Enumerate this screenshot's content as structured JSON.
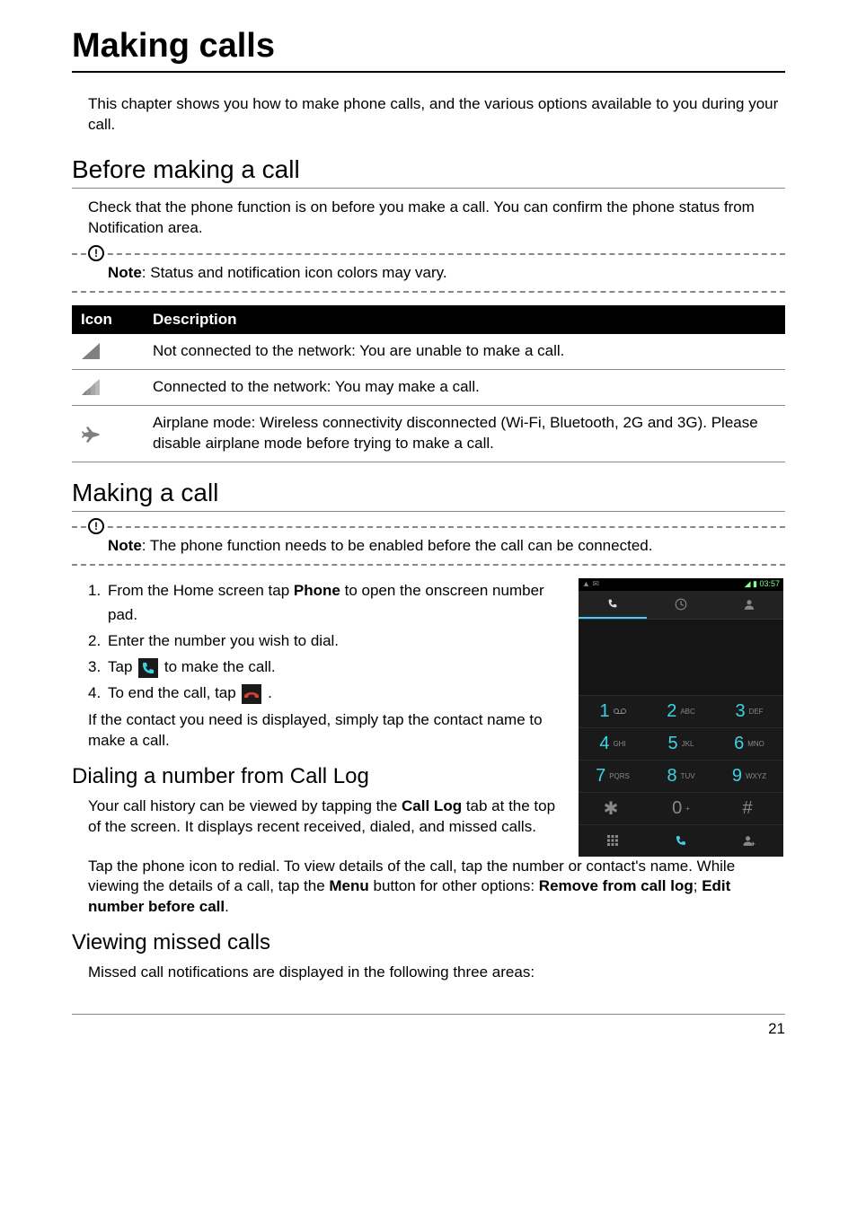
{
  "page_title": "Making calls",
  "intro": "This chapter shows you how to make phone calls, and the various options available to you during your call.",
  "section_before": {
    "heading": "Before making a call",
    "body": "Check that the phone function is on before you make a call. You can confirm the phone status from Notification area.",
    "note_label": "Note",
    "note_text": ": Status and notification icon colors may vary."
  },
  "icon_table": {
    "headers": {
      "icon": "Icon",
      "desc": "Description"
    },
    "rows": [
      {
        "desc": "Not connected to the network: You are unable to make a call."
      },
      {
        "desc": "Connected to the network: You may make a call."
      },
      {
        "desc": "Airplane mode: Wireless connectivity disconnected (Wi-Fi, Bluetooth, 2G and 3G). Please disable airplane mode before trying to make a call."
      }
    ]
  },
  "section_making": {
    "heading": "Making a call",
    "note_label": "Note",
    "note_text": ": The phone function needs to be enabled before the call can be connected.",
    "steps": {
      "s1a": "From the Home screen tap ",
      "s1b": "Phone",
      "s1c": " to open the onscreen number pad.",
      "s2": "Enter the number you wish to dial.",
      "s3a": "Tap ",
      "s3b": " to make the call.",
      "s4a": "To end the call, tap ",
      "s4b": "."
    },
    "tail": "If the contact you need is displayed, simply tap the contact name to make a call."
  },
  "section_dial": {
    "heading": "Dialing a number from Call Log",
    "p1a": "Your call history can be viewed by tapping the ",
    "p1b": "Call Log",
    "p1c": " tab at the top of the screen. It displays recent received, dialed, and missed calls.",
    "p2a": "Tap the phone icon to redial. To view details of the call, tap the number or contact's name. While viewing the details of a call, tap the ",
    "p2b": "Menu",
    "p2c": " button for other options: ",
    "p2d": "Remove from call log",
    "p2e": "; ",
    "p2f": "Edit number before call",
    "p2g": "."
  },
  "section_missed": {
    "heading": "Viewing missed calls",
    "body": "Missed call notifications are displayed in the following three areas:"
  },
  "phone_mock": {
    "status_time": "03:57",
    "keypad": [
      {
        "d": "1",
        "l": ""
      },
      {
        "d": "2",
        "l": "ABC"
      },
      {
        "d": "3",
        "l": "DEF"
      },
      {
        "d": "4",
        "l": "GHI"
      },
      {
        "d": "5",
        "l": "JKL"
      },
      {
        "d": "6",
        "l": "MNO"
      },
      {
        "d": "7",
        "l": "PQRS"
      },
      {
        "d": "8",
        "l": "TUV"
      },
      {
        "d": "9",
        "l": "WXYZ"
      },
      {
        "d": "✱",
        "l": ""
      },
      {
        "d": "0",
        "l": "+"
      },
      {
        "d": "#",
        "l": ""
      }
    ]
  },
  "colors": {
    "text": "#000000",
    "accent_cyan": "#3cd3e6",
    "mock_bg": "#1a1a1a",
    "icon_gray": "#808080"
  },
  "page_number": "21"
}
